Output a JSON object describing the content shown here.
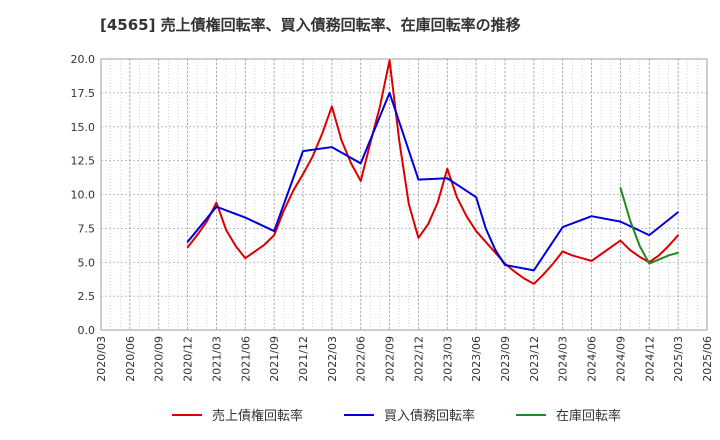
{
  "chart_data": {
    "type": "line",
    "title": "[4565]  売上債権回転率、買入債務回転率、在庫回転率の推移",
    "xlabel": "",
    "ylabel": "",
    "ylim": [
      0,
      20
    ],
    "yticks": [
      "0.0",
      "2.5",
      "5.0",
      "7.5",
      "10.0",
      "12.5",
      "15.0",
      "17.5",
      "20.0"
    ],
    "xticks": [
      "2020/03",
      "2020/06",
      "2020/09",
      "2020/12",
      "2021/03",
      "2021/06",
      "2021/09",
      "2021/12",
      "2022/03",
      "2022/06",
      "2022/09",
      "2022/12",
      "2023/03",
      "2023/06",
      "2023/09",
      "2023/12",
      "2024/03",
      "2024/06",
      "2024/09",
      "2024/12",
      "2025/03",
      "2025/06"
    ],
    "grid": true,
    "legend_position": "bottom",
    "series": [
      {
        "name": "売上債権回転率",
        "color": "#dd0000",
        "points": [
          [
            "2020/12",
            6.1
          ],
          [
            "2021/01",
            7.0
          ],
          [
            "2021/02",
            8.0
          ],
          [
            "2021/03",
            9.4
          ],
          [
            "2021/04",
            7.4
          ],
          [
            "2021/05",
            6.2
          ],
          [
            "2021/06",
            5.3
          ],
          [
            "2021/07",
            5.8
          ],
          [
            "2021/08",
            6.3
          ],
          [
            "2021/09",
            7.0
          ],
          [
            "2021/10",
            8.8
          ],
          [
            "2021/11",
            10.3
          ],
          [
            "2021/12",
            11.5
          ],
          [
            "2022/01",
            12.8
          ],
          [
            "2022/02",
            14.5
          ],
          [
            "2022/03",
            16.5
          ],
          [
            "2022/04",
            14.0
          ],
          [
            "2022/05",
            12.3
          ],
          [
            "2022/06",
            11.0
          ],
          [
            "2022/07",
            13.8
          ],
          [
            "2022/08",
            16.5
          ],
          [
            "2022/09",
            19.9
          ],
          [
            "2022/10",
            14.0
          ],
          [
            "2022/11",
            9.3
          ],
          [
            "2022/12",
            6.8
          ],
          [
            "2023/01",
            7.8
          ],
          [
            "2023/02",
            9.4
          ],
          [
            "2023/03",
            11.9
          ],
          [
            "2023/04",
            9.8
          ],
          [
            "2023/05",
            8.4
          ],
          [
            "2023/06",
            7.3
          ],
          [
            "2023/07",
            6.5
          ],
          [
            "2023/08",
            5.7
          ],
          [
            "2023/09",
            4.9
          ],
          [
            "2023/10",
            4.3
          ],
          [
            "2023/11",
            3.8
          ],
          [
            "2023/12",
            3.4
          ],
          [
            "2024/01",
            4.1
          ],
          [
            "2024/02",
            4.9
          ],
          [
            "2024/03",
            5.8
          ],
          [
            "2024/04",
            5.5
          ],
          [
            "2024/05",
            5.3
          ],
          [
            "2024/06",
            5.1
          ],
          [
            "2024/07",
            5.6
          ],
          [
            "2024/08",
            6.1
          ],
          [
            "2024/09",
            6.6
          ],
          [
            "2024/10",
            5.9
          ],
          [
            "2024/11",
            5.4
          ],
          [
            "2024/12",
            5.0
          ],
          [
            "2025/01",
            5.5
          ],
          [
            "2025/02",
            6.2
          ],
          [
            "2025/03",
            7.0
          ]
        ]
      },
      {
        "name": "買入債務回転率",
        "color": "#0000dd",
        "points": [
          [
            "2020/12",
            6.5
          ],
          [
            "2021/03",
            9.1
          ],
          [
            "2021/06",
            8.3
          ],
          [
            "2021/09",
            7.3
          ],
          [
            "2021/12",
            13.2
          ],
          [
            "2022/03",
            13.5
          ],
          [
            "2022/06",
            12.3
          ],
          [
            "2022/09",
            17.5
          ],
          [
            "2022/12",
            11.1
          ],
          [
            "2023/03",
            11.2
          ],
          [
            "2023/06",
            9.8
          ],
          [
            "2023/07",
            7.5
          ],
          [
            "2023/08",
            5.9
          ],
          [
            "2023/09",
            4.8
          ],
          [
            "2023/12",
            4.4
          ],
          [
            "2024/03",
            7.6
          ],
          [
            "2024/06",
            8.4
          ],
          [
            "2024/09",
            8.0
          ],
          [
            "2024/12",
            7.0
          ],
          [
            "2025/03",
            8.7
          ]
        ]
      },
      {
        "name": "在庫回転率",
        "color": "#228822",
        "points": [
          [
            "2024/09",
            10.5
          ],
          [
            "2024/10",
            8.1
          ],
          [
            "2024/11",
            6.2
          ],
          [
            "2024/12",
            4.9
          ],
          [
            "2025/01",
            5.2
          ],
          [
            "2025/02",
            5.5
          ],
          [
            "2025/03",
            5.7
          ]
        ]
      }
    ]
  }
}
